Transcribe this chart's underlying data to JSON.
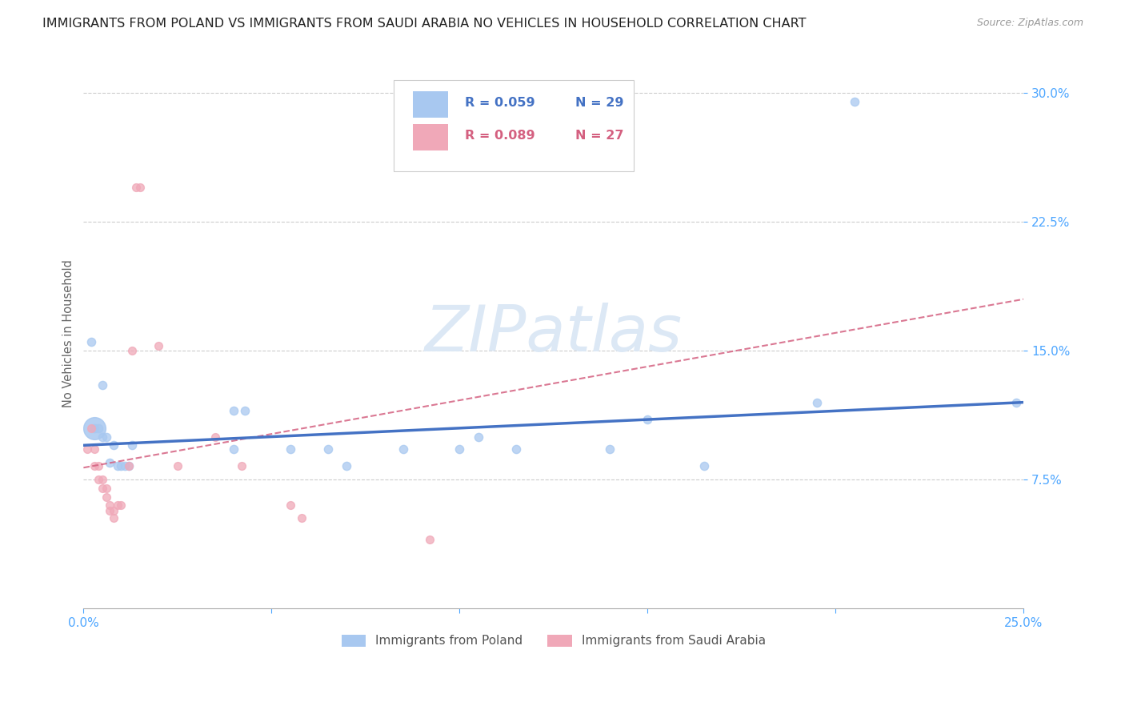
{
  "title": "IMMIGRANTS FROM POLAND VS IMMIGRANTS FROM SAUDI ARABIA NO VEHICLES IN HOUSEHOLD CORRELATION CHART",
  "source": "Source: ZipAtlas.com",
  "ylabel": "No Vehicles in Household",
  "poland_R": "R = 0.059",
  "poland_N": "N = 29",
  "saudi_R": "R = 0.089",
  "saudi_N": "N = 27",
  "poland_color": "#a8c8f0",
  "saudi_color": "#f0a8b8",
  "poland_line_color": "#4472c4",
  "saudi_line_color": "#d46080",
  "xlim": [
    0.0,
    0.25
  ],
  "ylim": [
    0.0,
    0.32
  ],
  "x_ticks": [
    0.0,
    0.05,
    0.1,
    0.15,
    0.2,
    0.25
  ],
  "x_tick_labels": [
    "0.0%",
    "",
    "",
    "",
    "",
    "25.0%"
  ],
  "y_ticks": [
    0.075,
    0.15,
    0.225,
    0.3
  ],
  "y_tick_labels": [
    "7.5%",
    "15.0%",
    "22.5%",
    "30.0%"
  ],
  "poland_points": [
    [
      0.002,
      0.155
    ],
    [
      0.003,
      0.105
    ],
    [
      0.004,
      0.105
    ],
    [
      0.005,
      0.13
    ],
    [
      0.005,
      0.1
    ],
    [
      0.006,
      0.1
    ],
    [
      0.007,
      0.085
    ],
    [
      0.008,
      0.095
    ],
    [
      0.009,
      0.083
    ],
    [
      0.01,
      0.083
    ],
    [
      0.011,
      0.083
    ],
    [
      0.012,
      0.083
    ],
    [
      0.013,
      0.095
    ],
    [
      0.04,
      0.115
    ],
    [
      0.04,
      0.093
    ],
    [
      0.043,
      0.115
    ],
    [
      0.055,
      0.093
    ],
    [
      0.065,
      0.093
    ],
    [
      0.07,
      0.083
    ],
    [
      0.085,
      0.093
    ],
    [
      0.1,
      0.093
    ],
    [
      0.105,
      0.1
    ],
    [
      0.115,
      0.093
    ],
    [
      0.14,
      0.093
    ],
    [
      0.15,
      0.11
    ],
    [
      0.165,
      0.083
    ],
    [
      0.195,
      0.12
    ],
    [
      0.205,
      0.295
    ],
    [
      0.248,
      0.12
    ]
  ],
  "poland_big_index": 2,
  "poland_big_size": 400,
  "poland_small_size": 55,
  "saudi_points": [
    [
      0.001,
      0.093
    ],
    [
      0.002,
      0.105
    ],
    [
      0.003,
      0.093
    ],
    [
      0.003,
      0.083
    ],
    [
      0.004,
      0.083
    ],
    [
      0.004,
      0.075
    ],
    [
      0.005,
      0.075
    ],
    [
      0.005,
      0.07
    ],
    [
      0.006,
      0.07
    ],
    [
      0.006,
      0.065
    ],
    [
      0.007,
      0.06
    ],
    [
      0.007,
      0.057
    ],
    [
      0.008,
      0.053
    ],
    [
      0.008,
      0.057
    ],
    [
      0.009,
      0.06
    ],
    [
      0.01,
      0.06
    ],
    [
      0.012,
      0.083
    ],
    [
      0.013,
      0.15
    ],
    [
      0.014,
      0.245
    ],
    [
      0.015,
      0.245
    ],
    [
      0.02,
      0.153
    ],
    [
      0.025,
      0.083
    ],
    [
      0.035,
      0.1
    ],
    [
      0.042,
      0.083
    ],
    [
      0.055,
      0.06
    ],
    [
      0.058,
      0.053
    ],
    [
      0.092,
      0.04
    ]
  ],
  "saudi_small_size": 50,
  "background_color": "#ffffff",
  "grid_color": "#cccccc",
  "tick_color": "#4da6ff",
  "ylabel_color": "#666666",
  "watermark_text": "ZIPatlas",
  "watermark_color": "#dce8f5"
}
